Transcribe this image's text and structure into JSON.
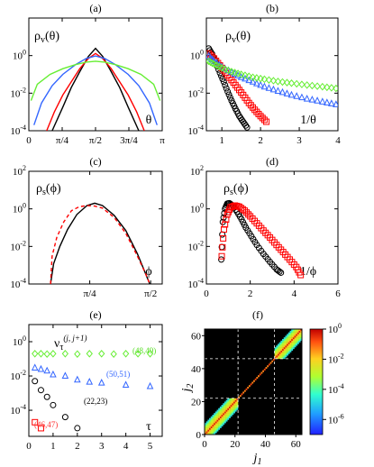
{
  "figure": {
    "panels": [
      {
        "id": "a",
        "label": "(a)",
        "ylabel": "ρv(θ)",
        "xlabel": "θ"
      },
      {
        "id": "b",
        "label": "(b)",
        "ylabel": "ρv(θ)",
        "xlabel": "1/θ"
      },
      {
        "id": "c",
        "label": "(c)",
        "ylabel": "ρs(ϕ)",
        "xlabel": "ϕ"
      },
      {
        "id": "d",
        "label": "(d)",
        "ylabel": "ρs(ϕ)",
        "xlabel": "1/ϕ"
      },
      {
        "id": "e",
        "label": "(e)",
        "ylabel": "ντ(j, j+1)",
        "xlabel": "τ"
      },
      {
        "id": "f",
        "label": "(f)",
        "ylabel": "j2",
        "xlabel": "j1"
      }
    ],
    "colors": {
      "black": "#000000",
      "red": "#ff0000",
      "blue": "#3366ff",
      "green": "#66ee33",
      "annot_red": "#ff3333",
      "annot_blue": "#3366ff",
      "annot_green": "#55dd22"
    }
  },
  "chart_data": [
    {
      "panel": "a",
      "type": "line",
      "title": "(a)",
      "ylabel": "ρv(θ)",
      "xlabel": "θ",
      "xlim": [
        0,
        3.1416
      ],
      "ylim": [
        0.0001,
        100
      ],
      "yscale": "log",
      "xticks": [
        "0",
        "π/4",
        "π/2",
        "3π/4",
        "π"
      ],
      "yticks": [
        "10^-4",
        "10^-2",
        "10^0"
      ],
      "series": [
        {
          "color": "black",
          "x": [
            0.55,
            0.8,
            1.0,
            1.2,
            1.4,
            1.5708,
            1.74,
            1.94,
            2.14,
            2.34,
            2.59
          ],
          "y": [
            0.0001,
            0.0018,
            0.02,
            0.14,
            0.9,
            2.4,
            0.9,
            0.14,
            0.02,
            0.0018,
            0.0001
          ]
        },
        {
          "color": "red",
          "x": [
            0.42,
            0.6,
            0.8,
            1.0,
            1.2,
            1.4,
            1.5708,
            1.74,
            1.94,
            2.14,
            2.34,
            2.54,
            2.72
          ],
          "y": [
            0.0001,
            0.001,
            0.008,
            0.04,
            0.2,
            0.7,
            1.3,
            0.7,
            0.2,
            0.04,
            0.008,
            0.001,
            0.0001
          ]
        },
        {
          "color": "blue",
          "x": [
            0.12,
            0.3,
            0.55,
            0.8,
            1.1,
            1.35,
            1.5708,
            1.79,
            2.04,
            2.34,
            2.59,
            2.84,
            3.02
          ],
          "y": [
            0.0002,
            0.003,
            0.025,
            0.1,
            0.33,
            0.7,
            0.95,
            0.7,
            0.33,
            0.1,
            0.025,
            0.003,
            0.0002
          ]
        },
        {
          "color": "green",
          "x": [
            0.05,
            0.2,
            0.5,
            0.8,
            1.1,
            1.35,
            1.5708,
            1.79,
            2.04,
            2.34,
            2.64,
            2.94,
            3.09
          ],
          "y": [
            0.004,
            0.03,
            0.1,
            0.2,
            0.33,
            0.45,
            0.5,
            0.45,
            0.33,
            0.2,
            0.1,
            0.03,
            0.004
          ]
        }
      ]
    },
    {
      "panel": "b",
      "type": "scatter",
      "title": "(b)",
      "ylabel": "ρv(θ)",
      "xlabel": "1/θ",
      "xlim": [
        0.6,
        4
      ],
      "ylim": [
        0.0001,
        100
      ],
      "yscale": "log",
      "xticks": [
        "1",
        "2",
        "3",
        "4"
      ],
      "yticks": [
        "10^-4",
        "10^-2",
        "10^0"
      ],
      "series": [
        {
          "color": "black",
          "marker": "circle",
          "x": [
            0.66,
            0.75,
            0.85,
            0.95,
            1.05,
            1.15,
            1.25,
            1.35,
            1.45,
            1.55,
            1.65
          ],
          "y": [
            2.4,
            1.2,
            0.4,
            0.12,
            0.04,
            0.012,
            0.004,
            0.0015,
            0.0006,
            0.0003,
            0.00015
          ]
        },
        {
          "color": "red",
          "marker": "square",
          "x": [
            0.66,
            0.8,
            0.95,
            1.1,
            1.25,
            1.4,
            1.55,
            1.7,
            1.85,
            2.0,
            2.15
          ],
          "y": [
            1.3,
            0.7,
            0.3,
            0.12,
            0.05,
            0.02,
            0.008,
            0.003,
            0.0013,
            0.0006,
            0.0003
          ]
        },
        {
          "color": "blue",
          "marker": "triangle",
          "x": [
            0.66,
            0.8,
            1.0,
            1.25,
            1.5,
            1.8,
            2.1,
            2.45,
            2.8,
            3.2,
            3.6,
            3.95
          ],
          "y": [
            0.95,
            0.5,
            0.25,
            0.13,
            0.07,
            0.04,
            0.022,
            0.013,
            0.008,
            0.005,
            0.0035,
            0.0025
          ]
        },
        {
          "color": "green",
          "marker": "diamond",
          "x": [
            0.66,
            0.8,
            1.0,
            1.25,
            1.5,
            1.8,
            2.1,
            2.45,
            2.8,
            3.2,
            3.6,
            3.95
          ],
          "y": [
            0.5,
            0.35,
            0.22,
            0.14,
            0.1,
            0.07,
            0.055,
            0.042,
            0.034,
            0.027,
            0.022,
            0.018
          ]
        }
      ]
    },
    {
      "panel": "c",
      "type": "line",
      "title": "(c)",
      "ylabel": "ρs(ϕ)",
      "xlabel": "ϕ",
      "xlim": [
        0,
        1.72
      ],
      "ylim": [
        0.0001,
        100
      ],
      "yscale": "log",
      "xticks": [
        "π/4",
        "π/2"
      ],
      "yticks": [
        "10^-4",
        "10^-2",
        "10^0",
        "10^2"
      ],
      "series": [
        {
          "color": "black",
          "style": "solid",
          "x": [
            0.28,
            0.32,
            0.4,
            0.5,
            0.62,
            0.75,
            0.85,
            0.95,
            1.1,
            1.25,
            1.4,
            1.5,
            1.56
          ],
          "y": [
            0.0001,
            0.0012,
            0.01,
            0.08,
            0.5,
            1.5,
            2.0,
            1.5,
            0.45,
            0.07,
            0.004,
            0.0004,
            0.0001
          ]
        },
        {
          "color": "red",
          "style": "dashed",
          "x": [
            0.28,
            0.3,
            0.36,
            0.45,
            0.55,
            0.65,
            0.75,
            0.85,
            0.95,
            1.1,
            1.25,
            1.4,
            1.5,
            1.56
          ],
          "y": [
            0.0001,
            0.003,
            0.03,
            0.2,
            0.8,
            1.3,
            1.5,
            1.4,
            1.1,
            0.35,
            0.05,
            0.003,
            0.0004,
            0.0001
          ]
        }
      ]
    },
    {
      "panel": "d",
      "type": "scatter",
      "title": "(d)",
      "ylabel": "ρs(ϕ)",
      "xlabel": "1/ϕ",
      "xlim": [
        0,
        6
      ],
      "ylim": [
        0.0001,
        100
      ],
      "yscale": "log",
      "xticks": [
        "0",
        "2",
        "4",
        "6"
      ],
      "yticks": [
        "10^-4",
        "10^-2",
        "10^0",
        "10^2"
      ],
      "series": [
        {
          "color": "black",
          "marker": "circle",
          "x": [
            0.68,
            0.75,
            0.85,
            0.95,
            1.05,
            1.2,
            1.4,
            1.6,
            1.8,
            2.05,
            2.3,
            2.6,
            2.9,
            3.2,
            3.4
          ],
          "y": [
            0.002,
            0.2,
            1.0,
            1.9,
            2.0,
            1.5,
            0.7,
            0.28,
            0.1,
            0.035,
            0.012,
            0.004,
            0.0015,
            0.0006,
            0.0004
          ]
        },
        {
          "color": "red",
          "marker": "square",
          "x": [
            0.7,
            0.8,
            0.95,
            1.1,
            1.3,
            1.5,
            1.75,
            2.0,
            2.3,
            2.6,
            2.9,
            3.2,
            3.5,
            3.8,
            4.1,
            4.3
          ],
          "y": [
            0.003,
            0.08,
            0.5,
            1.2,
            1.5,
            1.3,
            0.8,
            0.4,
            0.17,
            0.07,
            0.03,
            0.012,
            0.005,
            0.002,
            0.0008,
            0.0003
          ]
        }
      ]
    },
    {
      "panel": "e",
      "type": "scatter",
      "title": "(e)",
      "ylabel": "ντ(j, j+1)",
      "xlabel": "τ",
      "xlim": [
        0,
        5.5
      ],
      "ylim": [
        3e-06,
        10
      ],
      "yscale": "log",
      "xticks": [
        "0",
        "1",
        "2",
        "3",
        "4",
        "5"
      ],
      "yticks": [
        "10^-4",
        "10^-2",
        "10^0"
      ],
      "annotations": [
        {
          "text": "(48,49)",
          "color": "green"
        },
        {
          "text": "(50,51)",
          "color": "blue"
        },
        {
          "text": "(22,23)",
          "color": "black"
        },
        {
          "text": "(46,47)",
          "color": "red"
        }
      ],
      "series": [
        {
          "label": "(48,49)",
          "color": "green",
          "marker": "diamond",
          "x": [
            0.25,
            0.5,
            0.75,
            1.0,
            1.5,
            2.0,
            2.5,
            3.0,
            3.5,
            4.0,
            4.5,
            5.0
          ],
          "y": [
            0.2,
            0.2,
            0.19,
            0.2,
            0.2,
            0.19,
            0.2,
            0.2,
            0.19,
            0.2,
            0.2,
            0.2
          ]
        },
        {
          "label": "(50,51)",
          "color": "blue",
          "marker": "triangle",
          "x": [
            0.25,
            0.5,
            0.75,
            1.0,
            1.5,
            2.0,
            2.5,
            3.0,
            4.0,
            5.0
          ],
          "y": [
            0.03,
            0.025,
            0.02,
            0.012,
            0.01,
            0.006,
            0.0045,
            0.004,
            0.003,
            0.0025
          ]
        },
        {
          "label": "(22,23)",
          "color": "black",
          "marker": "circle",
          "x": [
            0.25,
            0.5,
            0.75,
            1.0,
            1.5,
            2.0
          ],
          "y": [
            0.005,
            0.0015,
            0.0006,
            0.0002,
            4e-05,
            9e-06
          ]
        },
        {
          "label": "(46,47)",
          "color": "red",
          "marker": "square",
          "x": [
            0.25,
            0.5
          ],
          "y": [
            2e-05,
            9e-06
          ]
        }
      ]
    },
    {
      "panel": "f",
      "type": "heatmap",
      "title": "(f)",
      "xlabel": "j1",
      "ylabel": "j2",
      "xlim": [
        0,
        64
      ],
      "ylim": [
        0,
        64
      ],
      "xticks": [
        "0",
        "20",
        "40",
        "60"
      ],
      "yticks": [
        "0",
        "20",
        "40",
        "60"
      ],
      "dashed_lines": [
        22,
        46
      ],
      "colorbar": {
        "scale": "log",
        "min": 1e-07,
        "max": 1,
        "ticks": [
          "10^0",
          "10^-2",
          "10^-4",
          "10^-6"
        ]
      },
      "blocks": [
        {
          "range": [
            0,
            22
          ],
          "description": "diagonal band block"
        },
        {
          "range": [
            22,
            46
          ],
          "description": "isolated diagonal sites"
        },
        {
          "range": [
            46,
            64
          ],
          "description": "diagonal band block"
        }
      ]
    }
  ]
}
